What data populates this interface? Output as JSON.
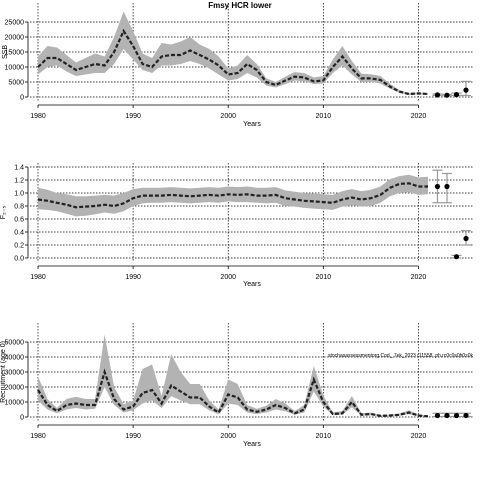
{
  "figure": {
    "title": "Fmsy HCR lower"
  },
  "chart_data": [
    {
      "type": "line",
      "ylabel": "SSB",
      "xlabel": "Years",
      "xlim": [
        1980,
        2025
      ],
      "ylim": [
        0,
        30000
      ],
      "x_ticks": [
        1980,
        1990,
        2000,
        2010,
        2020
      ],
      "y_ticks": [
        0,
        5000,
        10000,
        15000,
        20000,
        25000
      ],
      "grid": true,
      "years": [
        1980,
        1981,
        1982,
        1983,
        1984,
        1985,
        1986,
        1987,
        1988,
        1989,
        1990,
        1991,
        1992,
        1993,
        1994,
        1995,
        1996,
        1997,
        1998,
        1999,
        2000,
        2001,
        2002,
        2003,
        2004,
        2005,
        2006,
        2007,
        2008,
        2009,
        2010,
        2011,
        2012,
        2013,
        2014,
        2015,
        2016,
        2017,
        2018,
        2019,
        2020,
        2021
      ],
      "median": [
        10000,
        13000,
        13000,
        11000,
        9000,
        10000,
        11000,
        10500,
        15000,
        22000,
        17000,
        11000,
        10000,
        13500,
        14000,
        14000,
        15500,
        14000,
        12500,
        10500,
        7500,
        8000,
        11000,
        9000,
        5000,
        4000,
        5500,
        6800,
        6500,
        5200,
        5500,
        10000,
        13500,
        9500,
        6200,
        6200,
        5700,
        3500,
        1800,
        1000,
        1200,
        1000
      ],
      "lower": [
        7500,
        10000,
        10500,
        8500,
        7000,
        7500,
        8000,
        8000,
        11000,
        16000,
        12500,
        9000,
        8000,
        10500,
        10500,
        11000,
        12000,
        11000,
        9500,
        7500,
        5500,
        6000,
        8000,
        6500,
        3800,
        3200,
        4300,
        5500,
        5200,
        4300,
        4500,
        8000,
        10500,
        7500,
        5000,
        5000,
        4500,
        2800,
        1400,
        700,
        900,
        700
      ],
      "upper": [
        13500,
        17000,
        16500,
        14000,
        11500,
        13000,
        14500,
        13500,
        20000,
        28500,
        22000,
        14500,
        13000,
        18000,
        17500,
        18500,
        20000,
        17500,
        16000,
        13500,
        9500,
        10500,
        14000,
        11000,
        6200,
        5000,
        6800,
        8300,
        8000,
        6500,
        7000,
        12500,
        17000,
        12000,
        7800,
        7600,
        7000,
        4400,
        2300,
        1300,
        1500,
        1300
      ],
      "projection": {
        "x": [
          2022,
          2023,
          2024,
          2025
        ],
        "y": [
          700,
          600,
          800,
          2300
        ],
        "low": [
          500,
          400,
          500,
          500
        ],
        "high": [
          1000,
          900,
          1300,
          5200
        ]
      }
    },
    {
      "type": "line",
      "ylabel": "F₂₋₅",
      "xlabel": "Years",
      "xlim": [
        1980,
        2025
      ],
      "ylim": [
        0,
        1.4
      ],
      "x_ticks": [
        1980,
        1990,
        2000,
        2010,
        2020
      ],
      "y_ticks": [
        0.0,
        0.2,
        0.4,
        0.6,
        0.8,
        1.0,
        1.2,
        1.4
      ],
      "y_tick_labels": [
        "0.0",
        "0.2",
        "0.4",
        "0.6",
        "0.8",
        "1.0",
        "1.2",
        "1.4"
      ],
      "grid": true,
      "years": [
        1980,
        1981,
        1982,
        1983,
        1984,
        1985,
        1986,
        1987,
        1988,
        1989,
        1990,
        1991,
        1992,
        1993,
        1994,
        1995,
        1996,
        1997,
        1998,
        1999,
        2000,
        2001,
        2002,
        2003,
        2004,
        2005,
        2006,
        2007,
        2008,
        2009,
        2010,
        2011,
        2012,
        2013,
        2014,
        2015,
        2016,
        2017,
        2018,
        2019,
        2020,
        2021
      ],
      "median": [
        0.9,
        0.88,
        0.85,
        0.82,
        0.78,
        0.79,
        0.8,
        0.82,
        0.8,
        0.84,
        0.92,
        0.96,
        0.96,
        0.96,
        0.97,
        0.96,
        0.95,
        0.96,
        0.97,
        0.96,
        0.98,
        0.97,
        0.98,
        0.96,
        0.96,
        0.97,
        0.92,
        0.9,
        0.88,
        0.87,
        0.86,
        0.85,
        0.9,
        0.93,
        0.9,
        0.92,
        0.97,
        1.08,
        1.14,
        1.15,
        1.1,
        1.1
      ],
      "lower": [
        0.75,
        0.74,
        0.72,
        0.68,
        0.64,
        0.65,
        0.67,
        0.7,
        0.68,
        0.72,
        0.8,
        0.84,
        0.85,
        0.85,
        0.86,
        0.85,
        0.84,
        0.85,
        0.86,
        0.85,
        0.87,
        0.86,
        0.86,
        0.85,
        0.84,
        0.85,
        0.8,
        0.79,
        0.77,
        0.76,
        0.75,
        0.74,
        0.79,
        0.81,
        0.79,
        0.8,
        0.85,
        0.95,
        1.0,
        1.01,
        0.97,
        0.98
      ],
      "upper": [
        1.08,
        1.05,
        1.0,
        0.98,
        0.95,
        0.95,
        0.96,
        0.97,
        0.96,
        1.0,
        1.06,
        1.08,
        1.08,
        1.08,
        1.09,
        1.08,
        1.07,
        1.08,
        1.09,
        1.08,
        1.1,
        1.09,
        1.1,
        1.08,
        1.08,
        1.09,
        1.04,
        1.02,
        1.0,
        0.99,
        0.98,
        0.97,
        1.03,
        1.06,
        1.03,
        1.05,
        1.1,
        1.21,
        1.26,
        1.28,
        1.24,
        1.25
      ],
      "projection": {
        "x": [
          2022,
          2023,
          2024,
          2025
        ],
        "y": [
          1.1,
          1.1,
          0.02,
          0.3
        ],
        "low": [
          0.85,
          0.85,
          0.0,
          0.2
        ],
        "high": [
          1.35,
          1.3,
          0.04,
          0.42
        ]
      }
    },
    {
      "type": "line",
      "ylabel": "Recruitment (age 0)",
      "xlabel": "Years",
      "xlim": [
        1980,
        2025
      ],
      "ylim": [
        0,
        60000
      ],
      "x_ticks": [
        1980,
        1990,
        2000,
        2010,
        2020
      ],
      "y_ticks": [
        0,
        10000,
        20000,
        30000,
        40000,
        50000
      ],
      "grid": true,
      "annotation": "stochasassessmentorg.Cod_ 7ek_2023 r11558 .ph.rc0c0s0h0s0k",
      "years": [
        1980,
        1981,
        1982,
        1983,
        1984,
        1985,
        1986,
        1987,
        1988,
        1989,
        1990,
        1991,
        1992,
        1993,
        1994,
        1995,
        1996,
        1997,
        1998,
        1999,
        2000,
        2001,
        2002,
        2003,
        2004,
        2005,
        2006,
        2007,
        2008,
        2009,
        2010,
        2011,
        2012,
        2013,
        2014,
        2015,
        2016,
        2017,
        2018,
        2019,
        2020,
        2021
      ],
      "median": [
        18000,
        8000,
        4000,
        8000,
        9000,
        8000,
        8000,
        30000,
        12000,
        5000,
        7000,
        16000,
        18000,
        9000,
        21000,
        17000,
        13000,
        13000,
        7000,
        3000,
        15000,
        13000,
        5000,
        3500,
        5000,
        8000,
        6000,
        2500,
        5000,
        25000,
        10000,
        2000,
        2500,
        10000,
        1500,
        2000,
        800,
        1000,
        1500,
        3000,
        1000,
        500
      ],
      "lower": [
        11000,
        5000,
        2500,
        5000,
        6000,
        5000,
        5500,
        20000,
        8000,
        3000,
        4500,
        9000,
        11000,
        6000,
        14000,
        11000,
        8500,
        8500,
        4500,
        1800,
        9000,
        8000,
        3000,
        2000,
        3000,
        5000,
        3800,
        1500,
        3000,
        17000,
        7000,
        1200,
        1500,
        6500,
        900,
        1200,
        400,
        600,
        900,
        1800,
        600,
        300
      ],
      "upper": [
        27000,
        12000,
        6000,
        12000,
        13500,
        12000,
        12000,
        55000,
        20000,
        8500,
        11000,
        32000,
        35000,
        14000,
        42000,
        30000,
        22000,
        22000,
        11000,
        5000,
        25000,
        22000,
        8000,
        5500,
        7500,
        12000,
        9000,
        4000,
        8000,
        34000,
        14500,
        3000,
        4000,
        14000,
        2500,
        3000,
        1300,
        1600,
        2300,
        4500,
        1600,
        900
      ],
      "projection": {
        "x": [
          2022,
          2023,
          2024,
          2025
        ],
        "y": [
          1000,
          1000,
          1000,
          1000
        ],
        "low": [
          300,
          300,
          300,
          300
        ],
        "high": [
          2500,
          2500,
          2500,
          2500
        ]
      }
    }
  ]
}
